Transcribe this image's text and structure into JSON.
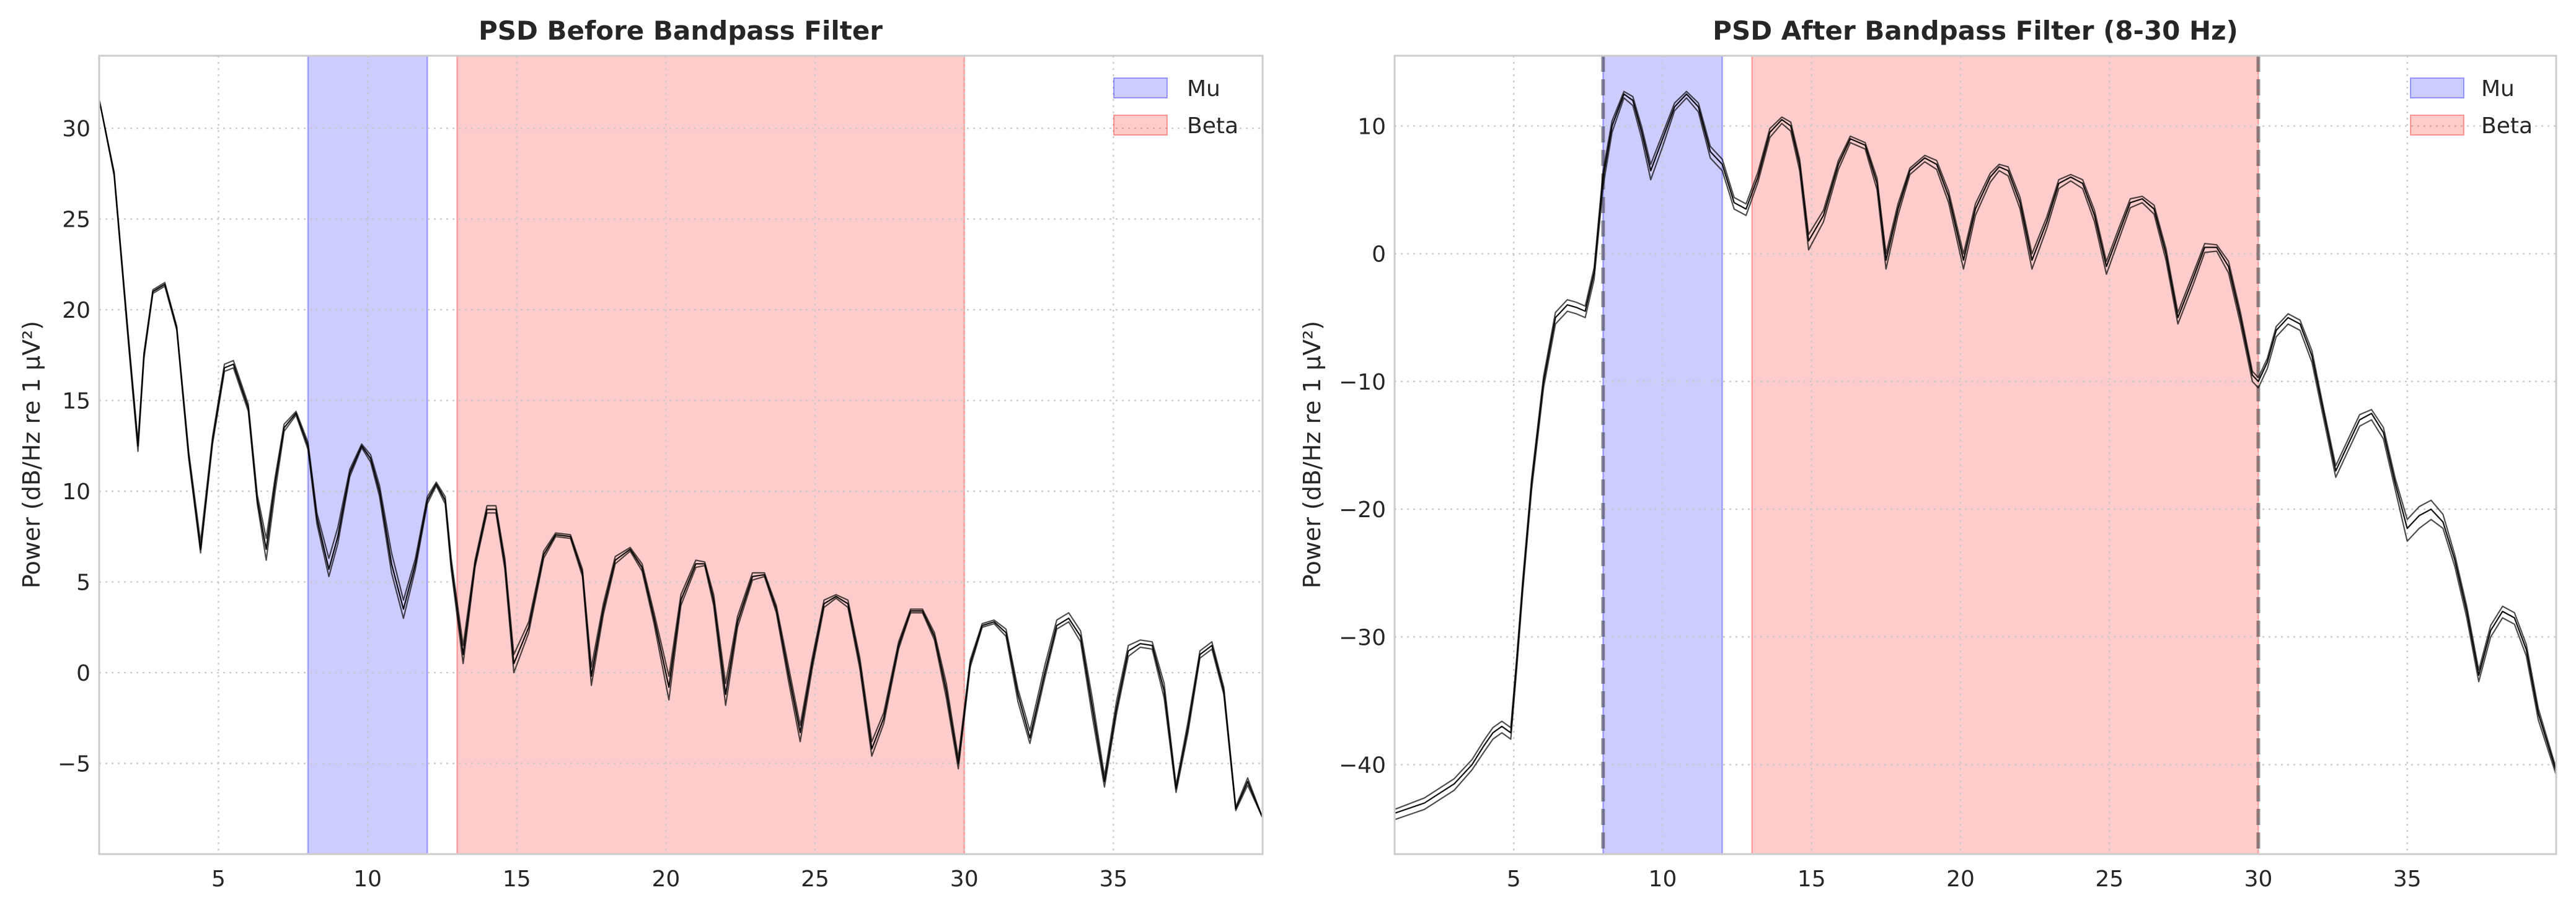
{
  "colors": {
    "mu": "#0000ff",
    "beta": "#ff0000",
    "trace": "#000000",
    "cutoff": "#404040"
  },
  "chart_data": [
    {
      "type": "line",
      "title": "PSD Before Bandpass Filter",
      "xlabel": "",
      "ylabel": "Power (dB/Hz re 1 µV²)",
      "xlim": [
        1,
        40
      ],
      "ylim": [
        -10,
        34
      ],
      "xticks": [
        5,
        10,
        15,
        20,
        25,
        30,
        35
      ],
      "yticks": [
        -5,
        0,
        5,
        10,
        15,
        20,
        25,
        30
      ],
      "grid": true,
      "legend": {
        "position": "top-right",
        "entries": [
          "Mu",
          "Beta"
        ]
      },
      "bands": [
        {
          "name": "Mu",
          "range": [
            8,
            12
          ],
          "color": "#0000ff",
          "alpha": 0.2
        },
        {
          "name": "Beta",
          "range": [
            13,
            30
          ],
          "color": "#ff0000",
          "alpha": 0.2
        }
      ],
      "cutoff_lines": [],
      "x": [
        1.0,
        1.5,
        2.0,
        2.3,
        2.5,
        2.8,
        3.2,
        3.6,
        4.0,
        4.4,
        4.8,
        5.2,
        5.5,
        6.0,
        6.3,
        6.6,
        6.9,
        7.2,
        7.6,
        8.0,
        8.3,
        8.7,
        9.0,
        9.4,
        9.8,
        10.1,
        10.4,
        10.8,
        11.2,
        11.6,
        12.0,
        12.3,
        12.6,
        12.8,
        13.2,
        13.6,
        14.0,
        14.3,
        14.6,
        14.9,
        15.4,
        15.9,
        16.3,
        16.8,
        17.2,
        17.5,
        17.9,
        18.3,
        18.8,
        19.2,
        19.6,
        20.1,
        20.5,
        21.0,
        21.3,
        21.6,
        22.0,
        22.4,
        22.9,
        23.3,
        23.7,
        24.1,
        24.5,
        24.9,
        25.3,
        25.7,
        26.1,
        26.5,
        26.9,
        27.3,
        27.8,
        28.2,
        28.6,
        29.0,
        29.4,
        29.8,
        30.2,
        30.6,
        31.0,
        31.4,
        31.8,
        32.2,
        32.7,
        33.1,
        33.5,
        33.9,
        34.3,
        34.7,
        35.1,
        35.5,
        35.9,
        36.3,
        36.7,
        37.1,
        37.5,
        37.9,
        38.3,
        38.7,
        39.1,
        39.5,
        40.0
      ],
      "series": [
        {
          "values": [
            31.6,
            27.5,
            18.0,
            12.5,
            17.5,
            21.0,
            21.4,
            19.0,
            12.0,
            6.8,
            12.8,
            16.8,
            17.0,
            14.6,
            9.5,
            6.8,
            10.5,
            13.5,
            14.3,
            12.5,
            8.5,
            5.7,
            7.5,
            11.0,
            12.5,
            11.8,
            10.0,
            6.0,
            3.5,
            6.0,
            9.5,
            10.4,
            9.5,
            6.0,
            1.0,
            6.0,
            9.0,
            9.0,
            6.0,
            0.5,
            2.5,
            6.5,
            7.6,
            7.5,
            5.5,
            -0.2,
            3.5,
            6.2,
            6.8,
            5.8,
            3.0,
            -0.8,
            4.0,
            6.0,
            6.0,
            4.0,
            -1.2,
            2.8,
            5.3,
            5.4,
            3.5,
            0.0,
            -3.3,
            0.5,
            3.8,
            4.2,
            3.8,
            0.5,
            -4.2,
            -2.5,
            1.5,
            3.4,
            3.4,
            2.0,
            -1.0,
            -5.0,
            0.5,
            2.6,
            2.8,
            2.2,
            -1.2,
            -3.6,
            0.0,
            2.6,
            3.0,
            2.0,
            -2.0,
            -6.0,
            -2.0,
            1.2,
            1.6,
            1.5,
            -1.0,
            -6.4,
            -3.0,
            1.0,
            1.5,
            -1.0,
            -7.5,
            -6.0,
            -8.0
          ]
        },
        {
          "values": [
            31.6,
            27.4,
            17.8,
            12.2,
            17.3,
            20.9,
            21.3,
            18.9,
            11.8,
            6.6,
            12.6,
            16.6,
            16.8,
            14.4,
            9.3,
            6.2,
            10.0,
            13.3,
            14.2,
            12.3,
            8.2,
            5.3,
            7.1,
            10.8,
            12.4,
            11.6,
            9.7,
            5.5,
            3.0,
            5.7,
            9.3,
            10.3,
            9.3,
            5.7,
            0.5,
            5.8,
            8.8,
            8.8,
            5.7,
            0.0,
            2.2,
            6.3,
            7.5,
            7.4,
            5.3,
            -0.7,
            3.2,
            6.0,
            6.7,
            5.6,
            2.7,
            -1.5,
            3.7,
            5.8,
            5.9,
            3.7,
            -1.8,
            2.5,
            5.1,
            5.3,
            3.3,
            -0.4,
            -3.8,
            0.2,
            3.6,
            4.1,
            3.6,
            0.2,
            -4.6,
            -2.8,
            1.3,
            3.3,
            3.3,
            1.8,
            -1.4,
            -5.3,
            0.3,
            2.5,
            2.7,
            2.0,
            -1.6,
            -3.9,
            -0.3,
            2.4,
            2.8,
            1.7,
            -2.5,
            -6.3,
            -2.3,
            0.9,
            1.4,
            1.3,
            -1.4,
            -6.6,
            -3.3,
            0.8,
            1.3,
            -1.2,
            -7.6,
            -6.2,
            -8.0
          ]
        },
        {
          "values": [
            31.6,
            27.6,
            18.2,
            12.7,
            17.6,
            21.1,
            21.5,
            19.1,
            12.2,
            7.2,
            13.0,
            17.0,
            17.2,
            14.8,
            9.8,
            7.4,
            10.8,
            13.7,
            14.4,
            12.7,
            8.8,
            6.3,
            8.0,
            11.2,
            12.6,
            12.0,
            10.3,
            6.6,
            4.0,
            6.3,
            9.7,
            10.5,
            9.7,
            6.3,
            1.5,
            6.2,
            9.2,
            9.2,
            6.3,
            1.0,
            2.8,
            6.7,
            7.7,
            7.6,
            5.7,
            0.3,
            3.8,
            6.4,
            6.9,
            6.0,
            3.3,
            -0.2,
            4.3,
            6.2,
            6.1,
            4.3,
            -0.6,
            3.1,
            5.5,
            5.5,
            3.7,
            0.4,
            -2.9,
            0.8,
            4.0,
            4.3,
            4.0,
            0.8,
            -3.8,
            -2.2,
            1.7,
            3.5,
            3.5,
            2.2,
            -0.6,
            -4.7,
            0.7,
            2.7,
            2.9,
            2.4,
            -0.9,
            -3.2,
            0.4,
            2.9,
            3.3,
            2.3,
            -1.5,
            -5.7,
            -1.6,
            1.5,
            1.8,
            1.7,
            -0.6,
            -6.2,
            -2.7,
            1.2,
            1.7,
            -0.8,
            -7.4,
            -5.8,
            -8.0
          ]
        }
      ]
    },
    {
      "type": "line",
      "title": "PSD After Bandpass Filter (8-30 Hz)",
      "xlabel": "",
      "ylabel": "Power (dB/Hz re 1 µV²)",
      "xlim": [
        1,
        40
      ],
      "ylim": [
        -47,
        15.5
      ],
      "xticks": [
        5,
        10,
        15,
        20,
        25,
        30,
        35
      ],
      "yticks": [
        -40,
        -30,
        -20,
        -10,
        0,
        10
      ],
      "grid": true,
      "legend": {
        "position": "top-right",
        "entries": [
          "Mu",
          "Beta"
        ]
      },
      "bands": [
        {
          "name": "Mu",
          "range": [
            8,
            12
          ],
          "color": "#0000ff",
          "alpha": 0.2
        },
        {
          "name": "Beta",
          "range": [
            13,
            30
          ],
          "color": "#ff0000",
          "alpha": 0.2
        }
      ],
      "cutoff_lines": [
        8,
        30
      ],
      "x": [
        1.0,
        2.0,
        3.0,
        3.6,
        4.0,
        4.3,
        4.6,
        4.9,
        5.1,
        5.3,
        5.6,
        6.0,
        6.4,
        6.8,
        7.1,
        7.4,
        7.7,
        8.0,
        8.3,
        8.7,
        9.0,
        9.3,
        9.6,
        10.0,
        10.4,
        10.8,
        11.2,
        11.6,
        12.0,
        12.4,
        12.8,
        13.2,
        13.6,
        14.0,
        14.3,
        14.6,
        14.9,
        15.4,
        15.9,
        16.3,
        16.8,
        17.2,
        17.5,
        17.9,
        18.3,
        18.8,
        19.2,
        19.6,
        20.1,
        20.5,
        21.0,
        21.3,
        21.6,
        22.0,
        22.4,
        22.9,
        23.3,
        23.7,
        24.1,
        24.5,
        24.9,
        25.3,
        25.7,
        26.1,
        26.5,
        26.9,
        27.3,
        27.8,
        28.2,
        28.6,
        29.0,
        29.4,
        29.8,
        30.0,
        30.3,
        30.6,
        31.0,
        31.4,
        31.8,
        32.2,
        32.6,
        33.0,
        33.4,
        33.8,
        34.2,
        34.6,
        35.0,
        35.4,
        35.8,
        36.2,
        36.6,
        37.0,
        37.4,
        37.8,
        38.2,
        38.6,
        39.0,
        39.4,
        40.0
      ],
      "series": [
        {
          "values": [
            -43.8,
            -43.0,
            -41.5,
            -40.0,
            -38.5,
            -37.5,
            -37.0,
            -37.5,
            -32.0,
            -26.0,
            -18.0,
            -10.0,
            -5.0,
            -4.0,
            -4.2,
            -4.5,
            -1.5,
            6.0,
            10.0,
            12.5,
            12.0,
            9.5,
            6.5,
            9.0,
            11.5,
            12.5,
            11.5,
            8.0,
            7.0,
            4.0,
            3.5,
            6.0,
            9.5,
            10.5,
            10.0,
            7.0,
            1.0,
            3.0,
            7.0,
            9.0,
            8.5,
            5.5,
            -0.5,
            3.5,
            6.5,
            7.5,
            7.0,
            4.5,
            -0.5,
            3.5,
            6.0,
            6.8,
            6.5,
            4.0,
            -0.5,
            2.5,
            5.5,
            6.0,
            5.5,
            3.0,
            -1.0,
            1.5,
            4.0,
            4.3,
            3.5,
            0.0,
            -5.0,
            -2.0,
            0.5,
            0.5,
            -1.0,
            -5.0,
            -9.5,
            -10.0,
            -8.5,
            -6.0,
            -5.0,
            -5.5,
            -8.0,
            -12.5,
            -17.0,
            -15.0,
            -13.0,
            -12.5,
            -14.0,
            -18.0,
            -21.5,
            -20.5,
            -20.0,
            -21.0,
            -24.0,
            -28.0,
            -33.0,
            -29.5,
            -28.0,
            -28.5,
            -31.0,
            -36.0,
            -40.5
          ]
        },
        {
          "values": [
            -44.3,
            -43.5,
            -42.0,
            -40.4,
            -39.0,
            -38.0,
            -37.5,
            -38.0,
            -32.5,
            -26.5,
            -18.5,
            -10.5,
            -5.5,
            -4.5,
            -4.7,
            -5.0,
            -2.0,
            5.3,
            9.5,
            12.2,
            11.6,
            9.0,
            5.8,
            8.4,
            11.2,
            12.2,
            11.1,
            7.5,
            6.5,
            3.5,
            3.0,
            5.6,
            9.1,
            10.2,
            9.6,
            6.5,
            0.3,
            2.5,
            6.6,
            8.7,
            8.2,
            5.0,
            -1.2,
            3.0,
            6.2,
            7.2,
            6.6,
            4.0,
            -1.2,
            3.0,
            5.6,
            6.5,
            6.1,
            3.5,
            -1.2,
            2.0,
            5.1,
            5.7,
            5.1,
            2.5,
            -1.6,
            1.0,
            3.6,
            4.0,
            3.1,
            -0.5,
            -5.5,
            -2.5,
            0.1,
            0.2,
            -1.5,
            -5.5,
            -10.0,
            -10.5,
            -9.0,
            -6.5,
            -5.5,
            -6.0,
            -8.5,
            -13.0,
            -17.5,
            -15.5,
            -13.5,
            -13.0,
            -14.5,
            -18.5,
            -22.5,
            -21.5,
            -20.8,
            -21.5,
            -24.5,
            -28.5,
            -33.5,
            -30.0,
            -28.5,
            -29.0,
            -31.5,
            -36.5,
            -40.8
          ]
        },
        {
          "values": [
            -43.5,
            -42.6,
            -41.1,
            -39.6,
            -38.1,
            -37.1,
            -36.6,
            -37.1,
            -31.6,
            -25.6,
            -17.6,
            -9.6,
            -4.6,
            -3.6,
            -3.8,
            -4.1,
            -1.1,
            6.5,
            10.4,
            12.7,
            12.3,
            9.9,
            7.0,
            9.4,
            11.8,
            12.7,
            11.8,
            8.4,
            7.4,
            4.4,
            3.9,
            6.4,
            9.8,
            10.7,
            10.3,
            7.4,
            1.5,
            3.4,
            7.3,
            9.2,
            8.7,
            5.9,
            0.0,
            3.9,
            6.7,
            7.7,
            7.3,
            4.9,
            0.0,
            3.9,
            6.3,
            7.0,
            6.8,
            4.4,
            0.0,
            2.9,
            5.8,
            6.2,
            5.8,
            3.4,
            -0.6,
            1.9,
            4.3,
            4.5,
            3.8,
            0.4,
            -4.6,
            -1.6,
            0.8,
            0.7,
            -0.6,
            -4.6,
            -9.2,
            -9.7,
            -8.2,
            -5.7,
            -4.7,
            -5.2,
            -7.6,
            -12.2,
            -16.6,
            -14.6,
            -12.6,
            -12.2,
            -13.6,
            -17.6,
            -20.8,
            -19.8,
            -19.3,
            -20.4,
            -23.6,
            -27.6,
            -32.6,
            -29.1,
            -27.6,
            -28.1,
            -30.6,
            -35.6,
            -40.3
          ]
        }
      ]
    }
  ]
}
